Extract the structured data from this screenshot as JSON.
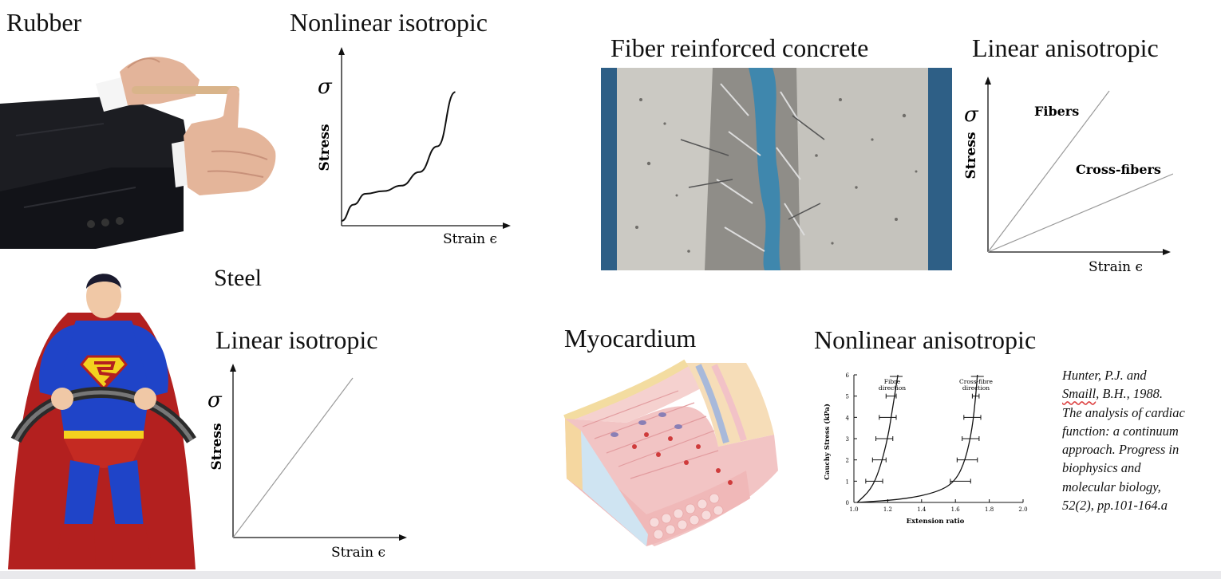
{
  "panels": {
    "rubber": {
      "material": "Rubber",
      "model": "Nonlinear isotropic",
      "chart": {
        "y_symbol": "σ",
        "y_label": "Stress",
        "x_label": "Strain ϵ"
      }
    },
    "concrete": {
      "material": "Fiber reinforced concrete",
      "model": "Linear anisotropic",
      "chart": {
        "y_symbol": "σ",
        "y_label": "Stress",
        "x_label": "Strain ϵ",
        "series_1": "Fibers",
        "series_2": "Cross-fibers"
      }
    },
    "steel": {
      "material": "Steel",
      "model": "Linear isotropic",
      "chart": {
        "y_symbol": "σ",
        "y_label": "Stress",
        "x_label": "Strain ϵ"
      }
    },
    "myocardium": {
      "material": "Myocardium",
      "model": "Nonlinear anisotropic",
      "chart": {
        "y_label": "Cauchy  Stress  (kPa)",
        "x_label": "Extension  ratio",
        "y_ticks": [
          "0",
          "1",
          "2",
          "3",
          "4",
          "5",
          "6"
        ],
        "x_ticks": [
          "1.0",
          "1.2",
          "1.4",
          "1.6",
          "1.8",
          "2.0"
        ],
        "series_1": [
          "Fibre",
          "direction"
        ],
        "series_2": [
          "Cross-fibre",
          "direction"
        ]
      },
      "citation": [
        "Hunter, P.J. and",
        "Smaill",
        ", B.H., 1988.",
        "The analysis of cardiac",
        "function: a continuum",
        "approach. Progress in",
        "biophysics and",
        "molecular biology,",
        "52(2), pp.101-164.a"
      ]
    }
  },
  "chart_data": [
    {
      "type": "line",
      "title": "",
      "series": [
        {
          "name": "",
          "x": [
            0,
            0.1,
            0.2,
            0.35,
            0.5,
            0.65,
            0.8,
            0.95
          ],
          "y": [
            0,
            0.12,
            0.2,
            0.22,
            0.26,
            0.36,
            0.55,
            0.95
          ]
        }
      ],
      "xlabel": "Strain ϵ",
      "ylabel": "Stress σ",
      "grid": false
    },
    {
      "type": "line",
      "title": "",
      "series": [
        {
          "name": "Fibers",
          "x": [
            0,
            1
          ],
          "y": [
            0,
            1
          ]
        },
        {
          "name": "Cross-fibers",
          "x": [
            0,
            1
          ],
          "y": [
            0,
            0.42
          ]
        }
      ],
      "xlabel": "Strain ϵ",
      "ylabel": "Stress σ",
      "grid": false
    },
    {
      "type": "line",
      "title": "",
      "series": [
        {
          "name": "",
          "x": [
            0,
            1
          ],
          "y": [
            0,
            1
          ]
        }
      ],
      "xlabel": "Strain ϵ",
      "ylabel": "Stress σ",
      "grid": false
    },
    {
      "type": "line",
      "title": "",
      "series": [
        {
          "name": "Fibre direction",
          "x": [
            1.02,
            1.1,
            1.15,
            1.2,
            1.23,
            1.25,
            1.26
          ],
          "y": [
            0,
            0.6,
            1.5,
            3.0,
            4.5,
            5.5,
            6.0
          ]
        },
        {
          "name": "Cross-fibre direction",
          "x": [
            1.02,
            1.3,
            1.5,
            1.6,
            1.66,
            1.7,
            1.72,
            1.73
          ],
          "y": [
            0,
            0.15,
            0.5,
            1.0,
            2.0,
            3.5,
            5.0,
            6.0
          ]
        }
      ],
      "error_bars": {
        "Fibre direction": [
          {
            "y": 1,
            "x": 1.12,
            "xerr": 0.05
          },
          {
            "y": 2,
            "x": 1.15,
            "xerr": 0.04
          },
          {
            "y": 3,
            "x": 1.18,
            "xerr": 0.05
          },
          {
            "y": 4,
            "x": 1.2,
            "xerr": 0.05
          },
          {
            "y": 5,
            "x": 1.22,
            "xerr": 0.03
          }
        ],
        "Cross-fibre direction": [
          {
            "y": 1,
            "x": 1.63,
            "xerr": 0.06
          },
          {
            "y": 2,
            "x": 1.67,
            "xerr": 0.06
          },
          {
            "y": 3,
            "x": 1.69,
            "xerr": 0.05
          },
          {
            "y": 4,
            "x": 1.7,
            "xerr": 0.05
          },
          {
            "y": 5,
            "x": 1.72,
            "xerr": 0.02
          }
        ]
      },
      "xlabel": "Extension  ratio",
      "ylabel": "Cauchy  Stress  (kPa)",
      "xlim": [
        1.0,
        2.0
      ],
      "ylim": [
        0,
        6
      ],
      "grid": false
    }
  ]
}
